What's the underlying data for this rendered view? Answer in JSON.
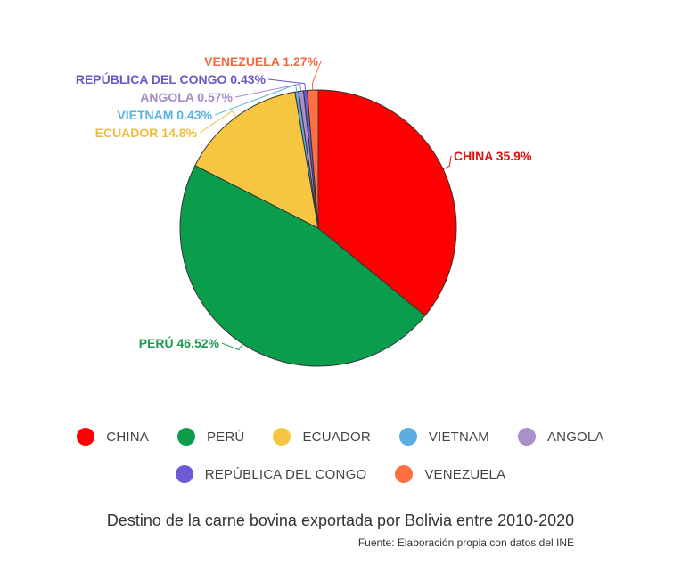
{
  "chart_data": {
    "type": "pie",
    "title": "Destino de la carne bovina exportada por Bolivia entre 2010-2020",
    "source": "Fuente: Elaboración propia con datos del  INE",
    "slices": [
      {
        "name": "CHINA",
        "value": 35.9,
        "label": "CHINA 35.9%",
        "color": "#ff0000"
      },
      {
        "name": "PERÚ",
        "value": 46.52,
        "label": "PERÚ 46.52%",
        "color": "#0a9e4c"
      },
      {
        "name": "ECUADOR",
        "value": 14.8,
        "label": "ECUADOR 14.8%",
        "color": "#f7c640"
      },
      {
        "name": "VIETNAM",
        "value": 0.43,
        "label": "VIETNAM 0.43%",
        "color": "#5dade2"
      },
      {
        "name": "ANGOLA",
        "value": 0.57,
        "label": "ANGOLA 0.57%",
        "color": "#a98fcb"
      },
      {
        "name": "REPÚBLICA DEL CONGO",
        "value": 0.43,
        "label": "REPÚBLICA DEL CONGO 0.43%",
        "color": "#6f5ad6"
      },
      {
        "name": "VENEZUELA",
        "value": 1.27,
        "label": "VENEZUELA 1.27%",
        "color": "#ff6f42"
      }
    ],
    "legend_placement": "bottom",
    "label_colors": {
      "CHINA": "#e01010",
      "PERÚ": "#1f9a50",
      "ECUADOR": "#efbd3b",
      "VIETNAM": "#59b3e0",
      "ANGOLA": "#a48bc8",
      "REPÚBLICA DEL CONGO": "#6a58c9",
      "VENEZUELA": "#f26a3f"
    }
  },
  "legend": {
    "row1": [
      "CHINA",
      "PERÚ",
      "ECUADOR",
      "VIETNAM",
      "ANGOLA"
    ],
    "row2": [
      "REPÚBLICA DEL CONGO",
      "VENEZUELA"
    ]
  }
}
